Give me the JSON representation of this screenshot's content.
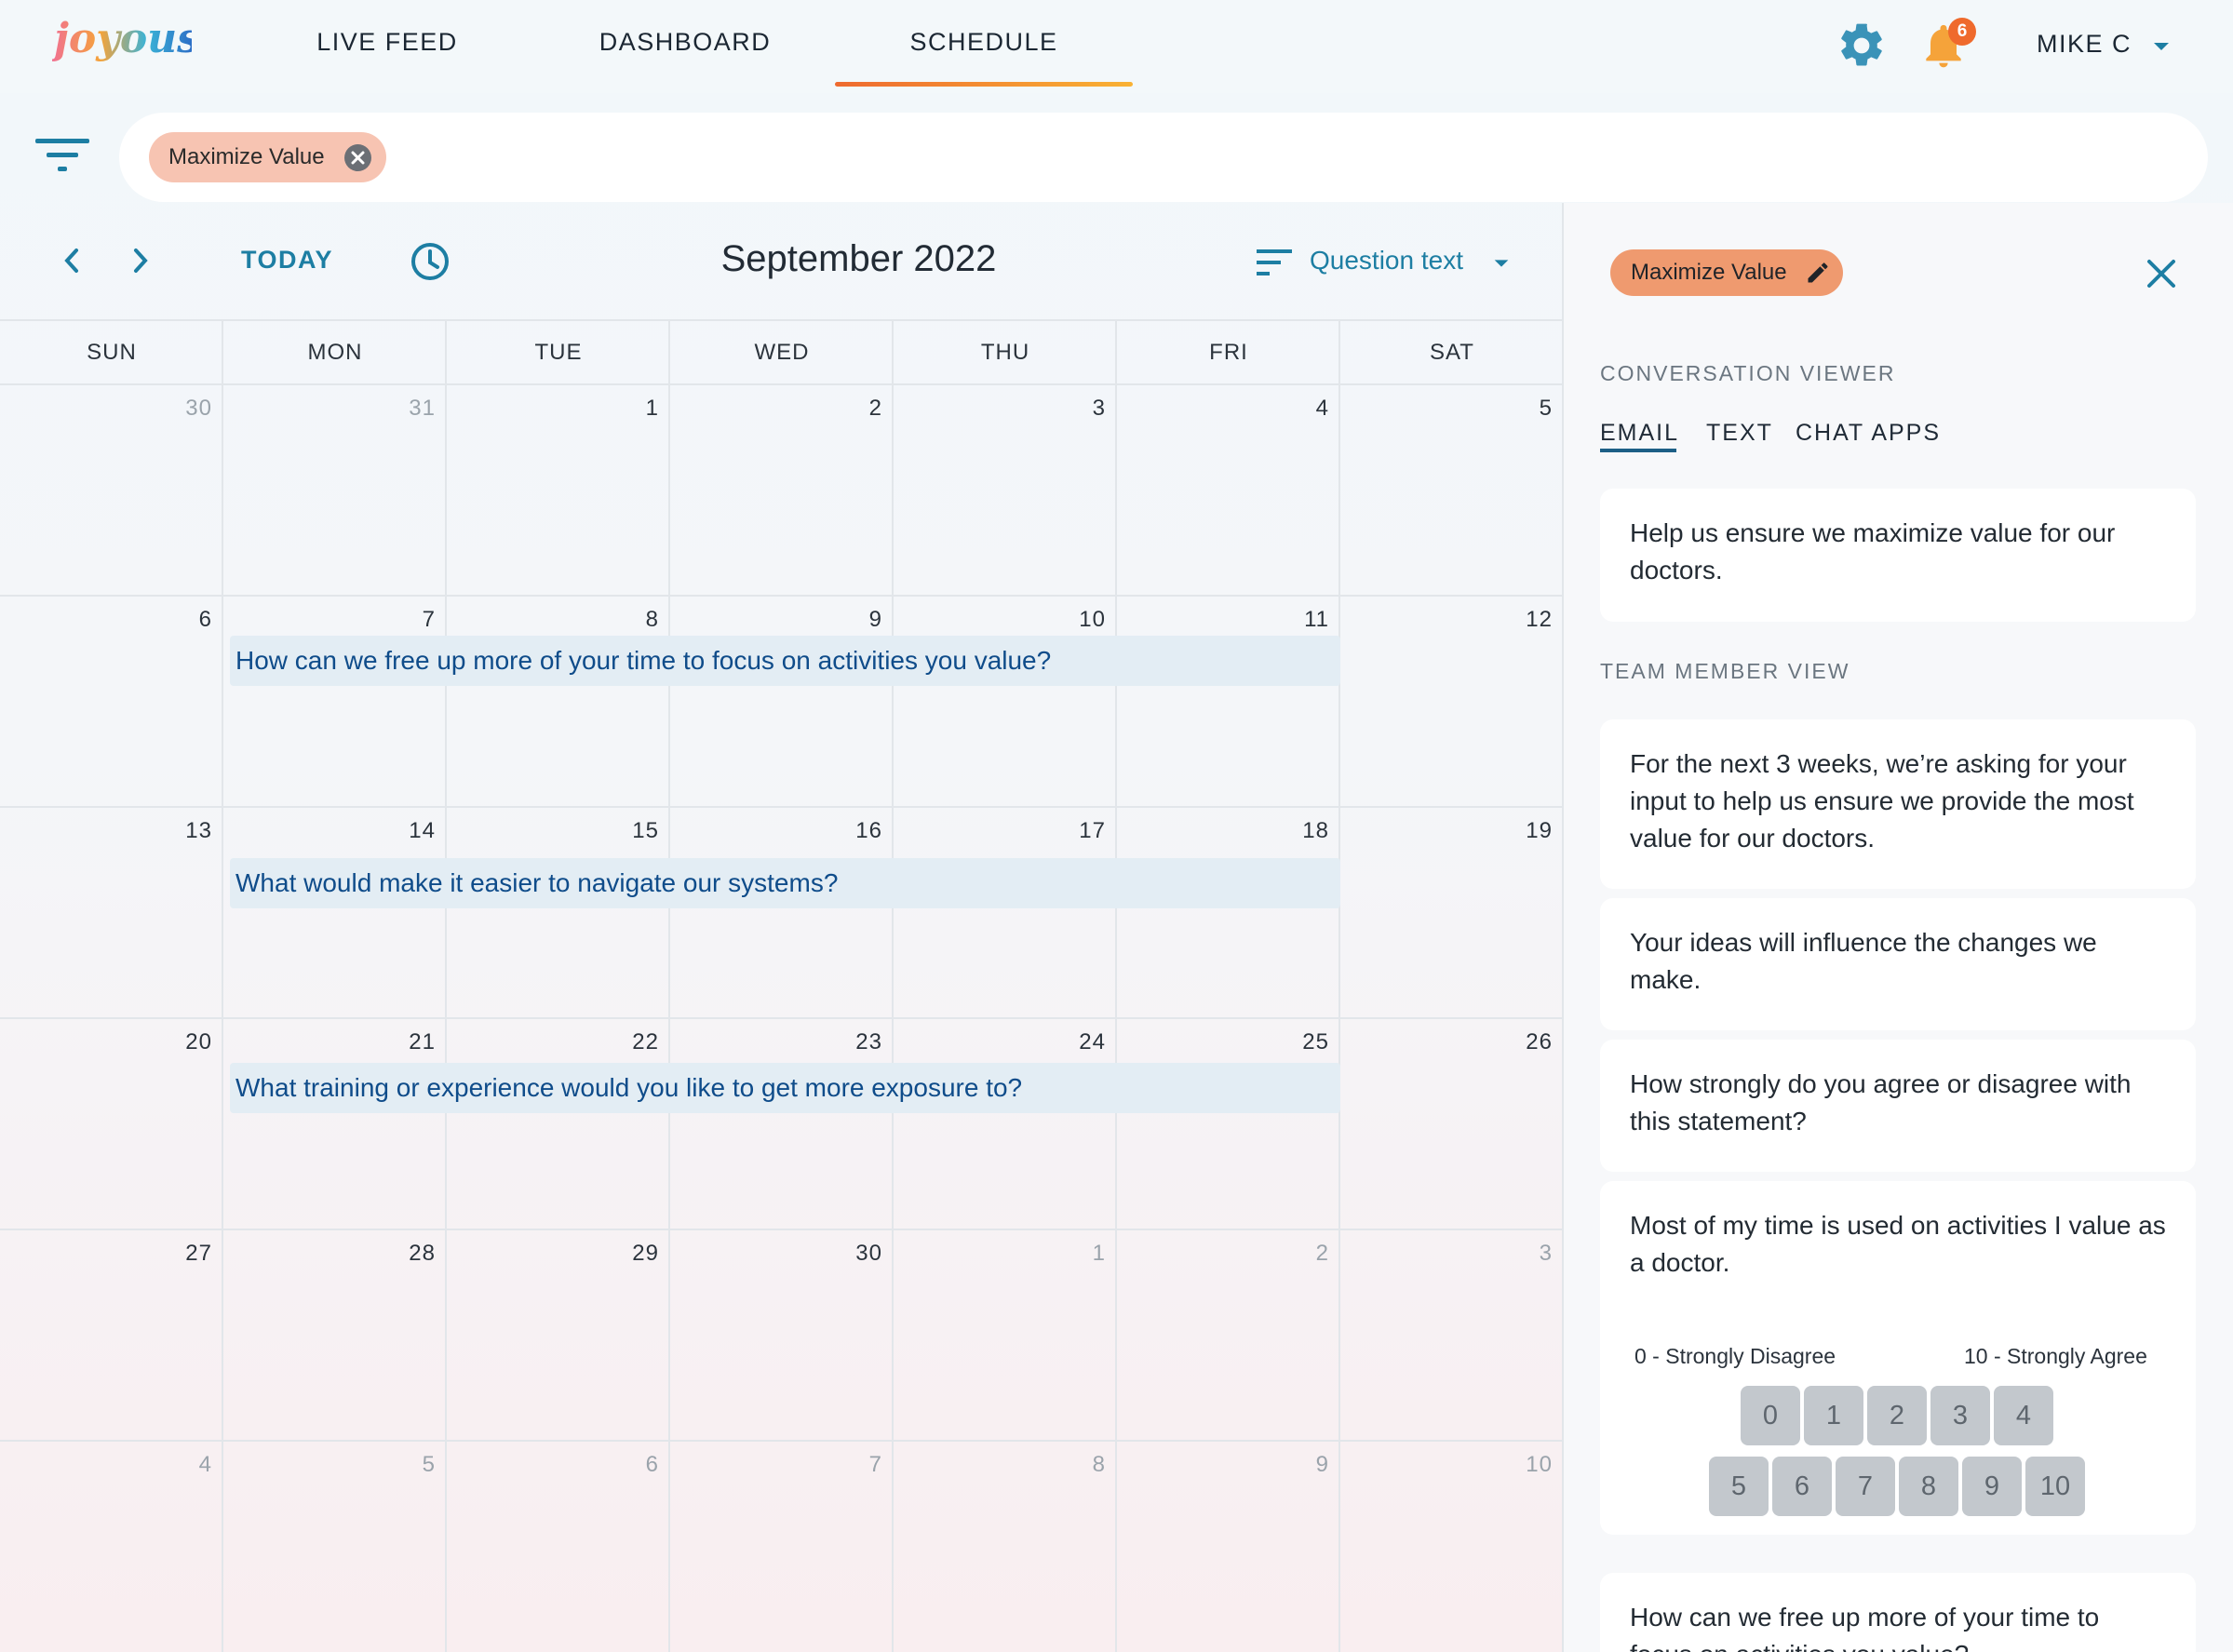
{
  "brand": {
    "logo_text": "joyous"
  },
  "nav": {
    "tabs": [
      {
        "label": "LIVE FEED"
      },
      {
        "label": "DASHBOARD"
      },
      {
        "label": "SCHEDULE",
        "active": true
      }
    ],
    "notification_count": "6",
    "user_name": "MIKE C"
  },
  "filter": {
    "chip_label": "Maximize Value"
  },
  "calendar": {
    "today_label": "TODAY",
    "month_title": "September 2022",
    "sort_label": "Question text",
    "weekdays": [
      "SUN",
      "MON",
      "TUE",
      "WED",
      "THU",
      "FRI",
      "SAT"
    ],
    "weeks": [
      [
        "30",
        "31",
        "1",
        "2",
        "3",
        "4",
        "5"
      ],
      [
        "6",
        "7",
        "8",
        "9",
        "10",
        "11",
        "12"
      ],
      [
        "13",
        "14",
        "15",
        "16",
        "17",
        "18",
        "19"
      ],
      [
        "20",
        "21",
        "22",
        "23",
        "24",
        "25",
        "26"
      ],
      [
        "27",
        "28",
        "29",
        "30",
        "1",
        "2",
        "3"
      ],
      [
        "4",
        "5",
        "6",
        "7",
        "8",
        "9",
        "10"
      ]
    ],
    "events": [
      "How can we free up more of your time to focus on activities you value?",
      "What would make it easier to navigate our systems?",
      "What training or experience would you like to get more exposure to?"
    ]
  },
  "panel": {
    "chip_label": "Maximize Value",
    "conversation_title": "CONVERSATION VIEWER",
    "tabs": [
      "EMAIL",
      "TEXT",
      "CHAT APPS"
    ],
    "email_text": "Help us ensure we maximize value for our doctors.",
    "team_title": "TEAM MEMBER VIEW",
    "messages": [
      "For the next 3 weeks, we’re asking for your input to help us ensure we provide the most value for our doctors.",
      "Your ideas will influence the changes we make.",
      "How strongly do you agree or disagree with this statement?",
      "Most of my time is used on activities I value as a doctor."
    ],
    "scale_low": "0 - Strongly Disagree",
    "scale_high": "10 - Strongly Agree",
    "scale_values": [
      "0",
      "1",
      "2",
      "3",
      "4",
      "5",
      "6",
      "7",
      "8",
      "9",
      "10"
    ],
    "next_message": "How can we free up more of your time to focus on activities you value?"
  },
  "colors": {
    "accent_blue": "#1d7ea3",
    "event_text": "#0f4c8a",
    "event_bg": "#e3edf4",
    "orange": "#ef6a2c",
    "chip_peach": "#f7c4b2"
  }
}
